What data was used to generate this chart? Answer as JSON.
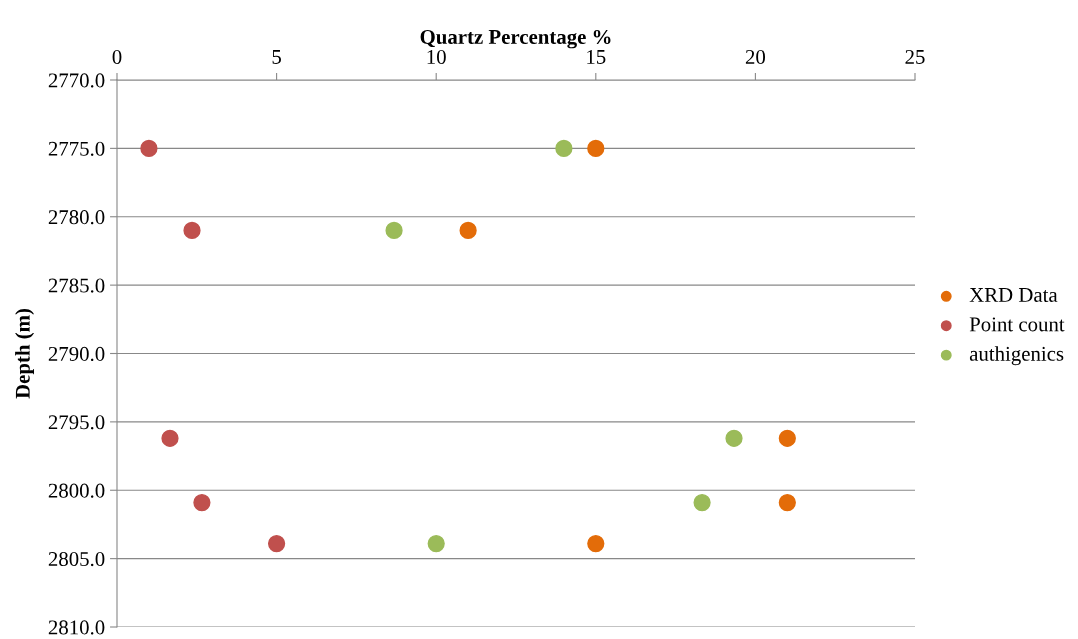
{
  "chart_data": {
    "type": "scatter",
    "xlabel": "Quartz Percentage %",
    "ylabel": "Depth (m)",
    "xlim": [
      0,
      25
    ],
    "xticks": [
      0,
      5,
      10,
      15,
      20,
      25
    ],
    "ylim": [
      2810,
      2770
    ],
    "yticks": [
      {
        "value": 2770,
        "label": "2770.0"
      },
      {
        "value": 2775,
        "label": "2775.0"
      },
      {
        "value": 2780,
        "label": "2780.0"
      },
      {
        "value": 2785,
        "label": "2785.0"
      },
      {
        "value": 2790,
        "label": "2790.0"
      },
      {
        "value": 2795,
        "label": "2795.0"
      },
      {
        "value": 2800,
        "label": "2800.0"
      },
      {
        "value": 2805,
        "label": "2805.0"
      },
      {
        "value": 2810,
        "label": "2810.0"
      }
    ],
    "grid": "y",
    "legend": "right",
    "marker": "circle",
    "series": [
      {
        "name": "XRD Data",
        "color": "#e36c09",
        "x": [
          15,
          11,
          21,
          21,
          15
        ],
        "values": [
          2775,
          2781.0,
          2796.2,
          2800.9,
          2803.9
        ]
      },
      {
        "name": "Point count",
        "color": "#c0504d",
        "x": [
          1.0,
          2.35,
          1.66,
          2.66,
          5
        ],
        "values": [
          2775,
          2781.0,
          2796.2,
          2800.9,
          2803.9
        ]
      },
      {
        "name": "authigenics",
        "color": "#9bbb59",
        "x": [
          14.0,
          8.68,
          19.33,
          18.33,
          10
        ],
        "values": [
          2775,
          2781.0,
          2796.2,
          2800.9,
          2803.9
        ]
      }
    ]
  }
}
